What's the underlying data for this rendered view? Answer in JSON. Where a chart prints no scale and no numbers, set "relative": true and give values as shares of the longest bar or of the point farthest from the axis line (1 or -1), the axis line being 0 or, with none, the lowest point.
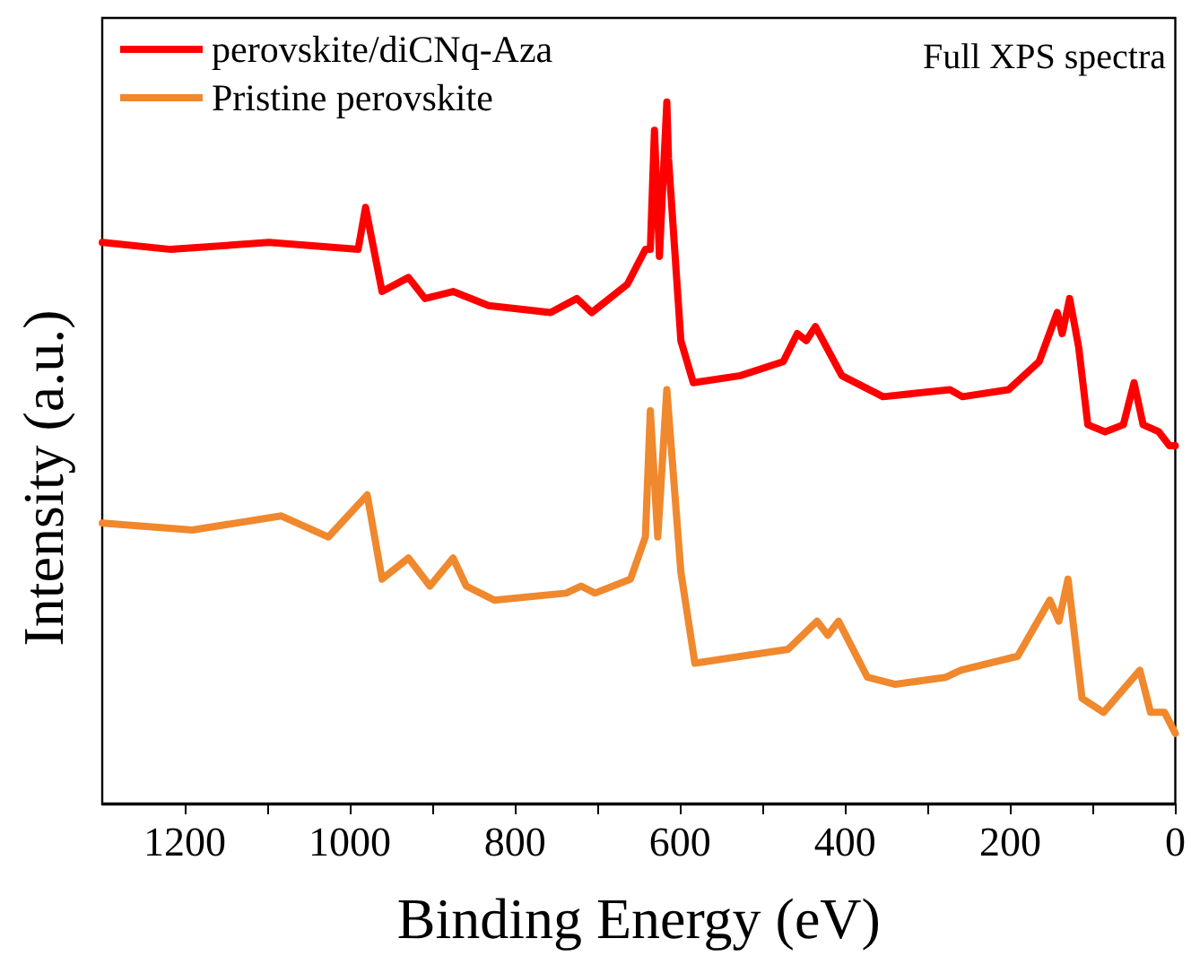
{
  "chart_data": {
    "type": "line",
    "xlabel": "Binding Energy (eV)",
    "ylabel": "Intensity (a.u.)",
    "annotations": [
      "Full XPS spectra"
    ],
    "relative": true,
    "xlim": [
      1300,
      0
    ],
    "xticks": [
      1200,
      {
        "value": 1100,
        "label": null
      },
      1000,
      {
        "value": 900,
        "label": null
      },
      800,
      {
        "value": 700,
        "label": null
      },
      600,
      {
        "value": 500,
        "label": null
      },
      400,
      {
        "value": 300,
        "label": null
      },
      200,
      {
        "value": 100,
        "label": null
      },
      0
    ],
    "tick_labels": "x",
    "grid": false,
    "legend": "top left",
    "marker": "none",
    "line_style": "solid",
    "series": [
      {
        "name": "perovskite/diCNq-Aza",
        "color": "#ff0000",
        "x": [
          1300,
          1217,
          1098,
          990,
          981,
          961,
          929,
          909,
          875,
          832,
          757,
          725,
          707,
          664,
          642,
          636,
          631,
          625,
          616,
          614,
          599,
          584,
          527,
          475,
          458,
          447,
          436,
          404,
          354,
          273,
          258,
          202,
          165,
          143,
          137,
          128,
          117,
          106,
          85,
          63,
          50,
          39,
          20,
          7,
          0
        ],
        "values": [
          0.8,
          0.79,
          0.8,
          0.79,
          0.85,
          0.73,
          0.75,
          0.72,
          0.73,
          0.71,
          0.7,
          0.72,
          0.7,
          0.74,
          0.79,
          0.79,
          0.96,
          0.78,
          1.0,
          0.92,
          0.66,
          0.6,
          0.61,
          0.63,
          0.67,
          0.66,
          0.68,
          0.61,
          0.58,
          0.59,
          0.58,
          0.59,
          0.63,
          0.7,
          0.67,
          0.72,
          0.65,
          0.54,
          0.53,
          0.54,
          0.6,
          0.54,
          0.53,
          0.51,
          0.51
        ]
      },
      {
        "name": "Pristine perovskite",
        "color": "#f0882e",
        "x": [
          1300,
          1191,
          1083,
          1026,
          979,
          961,
          929,
          903,
          875,
          859,
          825,
          738,
          720,
          703,
          660,
          642,
          636,
          627,
          616,
          599,
          582,
          469,
          434,
          421,
          408,
          373,
          339,
          278,
          260,
          191,
          152,
          141,
          130,
          113,
          87,
          43,
          30,
          13,
          0
        ],
        "values": [
          0.4,
          0.39,
          0.41,
          0.38,
          0.44,
          0.32,
          0.35,
          0.31,
          0.35,
          0.31,
          0.29,
          0.3,
          0.31,
          0.3,
          0.32,
          0.38,
          0.56,
          0.38,
          0.59,
          0.33,
          0.2,
          0.22,
          0.26,
          0.24,
          0.26,
          0.18,
          0.17,
          0.18,
          0.19,
          0.21,
          0.29,
          0.26,
          0.32,
          0.15,
          0.13,
          0.19,
          0.13,
          0.13,
          0.1
        ]
      }
    ]
  }
}
